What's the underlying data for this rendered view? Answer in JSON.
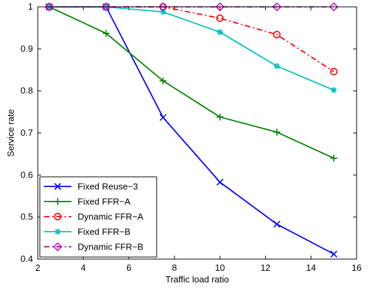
{
  "chart_data": {
    "type": "line",
    "xlabel": "Traffic load ratio",
    "ylabel": "Service rate",
    "xlim": [
      2,
      16
    ],
    "ylim": [
      0.4,
      1
    ],
    "xticks": [
      2,
      4,
      6,
      8,
      10,
      12,
      14,
      16
    ],
    "yticks": [
      0.4,
      0.5,
      0.6,
      0.7,
      0.8,
      0.9,
      1
    ],
    "xtick_labels": [
      "2",
      "4",
      "6",
      "8",
      "10",
      "12",
      "14",
      "16"
    ],
    "ytick_labels": [
      "0.4",
      "0.5",
      "0.6",
      "0.7",
      "0.8",
      "0.9",
      "1"
    ],
    "grid": false,
    "legend_position": "bottom-left",
    "x": [
      2.5,
      5,
      7.5,
      10,
      12.5,
      15
    ],
    "series": [
      {
        "name": "Fixed Reuse−3",
        "values": [
          1.0,
          1.0,
          0.737,
          0.583,
          0.483,
          0.412
        ],
        "color": "#0000ff",
        "marker": "x",
        "dash": "solid"
      },
      {
        "name": "Fixed FFR−A",
        "values": [
          1.0,
          0.937,
          0.824,
          0.738,
          0.702,
          0.64
        ],
        "color": "#008000",
        "marker": "plus",
        "dash": "solid"
      },
      {
        "name": "Dynamic FFR−A",
        "values": [
          1.0,
          1.0,
          1.0,
          0.973,
          0.934,
          0.846
        ],
        "color": "#ff0000",
        "marker": "circle",
        "dash": "dashdot"
      },
      {
        "name": "Fixed FFR−B",
        "values": [
          1.0,
          1.0,
          0.988,
          0.94,
          0.859,
          0.802
        ],
        "color": "#00bfbf",
        "marker": "star",
        "dash": "solid"
      },
      {
        "name": "Dynamic FFR−B",
        "values": [
          1.0,
          1.0,
          1.0,
          1.0,
          1.0,
          1.0
        ],
        "color": "#bf00bf",
        "marker": "diamond",
        "dash": "dashdot"
      }
    ]
  }
}
